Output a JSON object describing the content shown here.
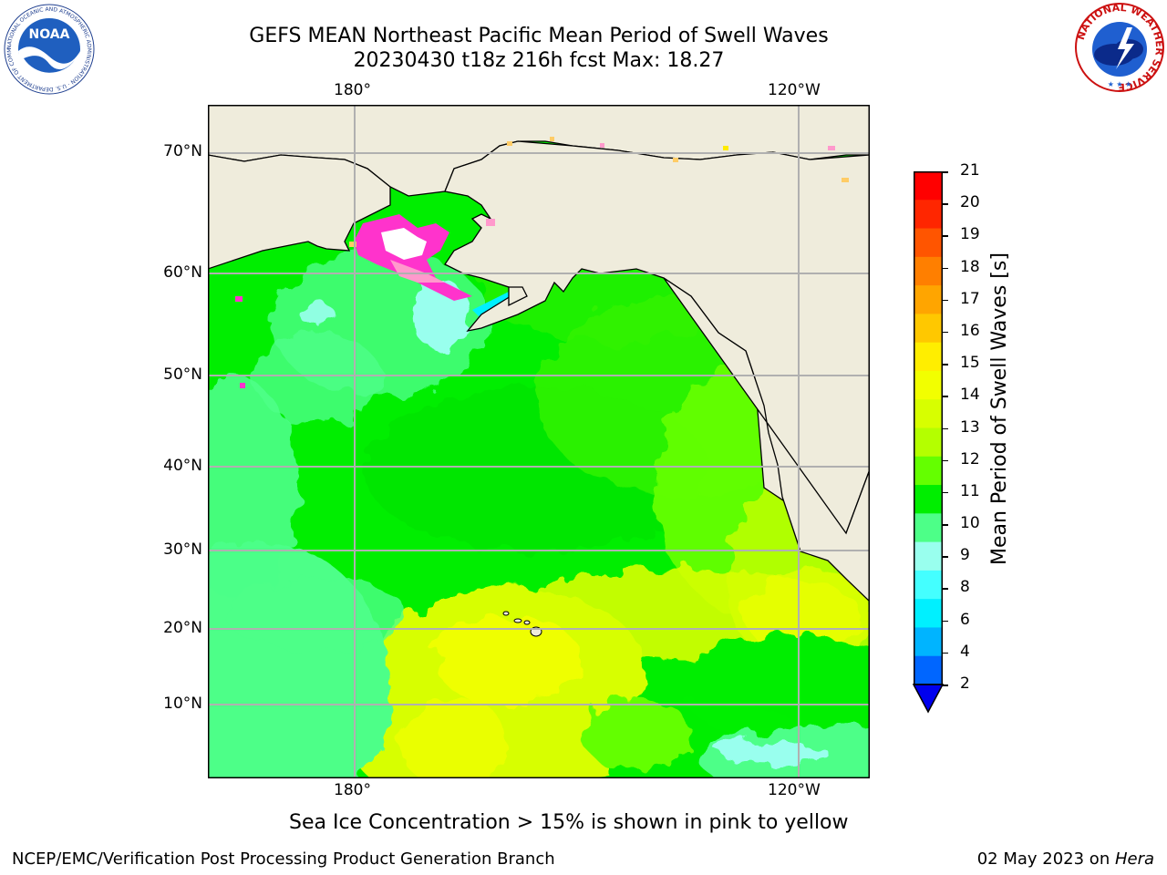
{
  "title": {
    "line1": "GEFS MEAN Northeast Pacific Mean Period of Swell Waves",
    "line2": "20230430 t18z 216h fcst   Max: 18.27"
  },
  "map": {
    "lon_labels": [
      "180°",
      "120°W"
    ],
    "lat_labels": [
      "70°N",
      "60°N",
      "50°N",
      "40°N",
      "30°N",
      "20°N",
      "10°N"
    ],
    "land_color": "#efecdc",
    "grid_color": "#b0b0b0",
    "sea_ice_colors": [
      "#ff33cc",
      "#ff99cc",
      "#ffcc66",
      "#ffeb00"
    ]
  },
  "colorbar": {
    "label": "Mean Period of Swell Waves [s]",
    "ticks": [
      "21",
      "20",
      "19",
      "18",
      "17",
      "16",
      "15",
      "14",
      "13",
      "12",
      "11",
      "10",
      "9",
      "8",
      "6",
      "4",
      "2"
    ],
    "colors": [
      "#ff0000",
      "#ff2600",
      "#ff5500",
      "#ff7f00",
      "#ffa500",
      "#ffc800",
      "#ffee00",
      "#f2ff00",
      "#d7ff00",
      "#b4ff00",
      "#64ff00",
      "#00ee00",
      "#4dff88",
      "#99ffee",
      "#44ffff",
      "#00f0ff",
      "#00b4ff",
      "#0066ff"
    ],
    "extend_color": "#0000ee"
  },
  "note": "Sea Ice Concentration > 15% is shown in pink to yellow",
  "footer": {
    "left": "NCEP/EMC/Verification Post Processing Product Generation Branch",
    "date": "02 May 2023 on ",
    "machine": "Hera"
  },
  "logos": {
    "noaa_text": "NOAA",
    "noaa_ring": "NATIONAL OCEANIC AND ATMOSPHERIC ADMINISTRATION · U.S. DEPARTMENT OF COMMERCE ·",
    "nws_ring": "NATIONAL WEATHER SERVICE"
  }
}
